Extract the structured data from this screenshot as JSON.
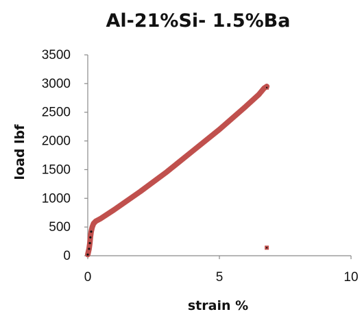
{
  "chart_data": {
    "type": "scatter",
    "title": "Al-21%Si- 1.5%Ba",
    "xlabel": "strain %",
    "ylabel": "load lbf",
    "xlim": [
      0,
      10
    ],
    "ylim": [
      0,
      3500
    ],
    "x_ticks": [
      "0",
      "5",
      "10"
    ],
    "y_ticks": [
      "0",
      "500",
      "1000",
      "1500",
      "2000",
      "2500",
      "3000",
      "3500"
    ],
    "grid": false,
    "legend": "none",
    "series": [
      {
        "color": "#c0504d",
        "points": [
          [
            0.0,
            20
          ],
          [
            0.05,
            120
          ],
          [
            0.08,
            220
          ],
          [
            0.1,
            320
          ],
          [
            0.13,
            420
          ],
          [
            0.17,
            500
          ],
          [
            0.22,
            560
          ],
          [
            0.3,
            600
          ],
          [
            0.5,
            650
          ],
          [
            1.0,
            800
          ],
          [
            2.0,
            1120
          ],
          [
            3.0,
            1460
          ],
          [
            4.0,
            1830
          ],
          [
            5.0,
            2200
          ],
          [
            6.0,
            2600
          ],
          [
            6.5,
            2810
          ],
          [
            6.7,
            2920
          ],
          [
            6.8,
            2950
          ]
        ],
        "outliers": [
          [
            6.8,
            140
          ],
          [
            6.8,
            2930
          ]
        ]
      }
    ]
  }
}
